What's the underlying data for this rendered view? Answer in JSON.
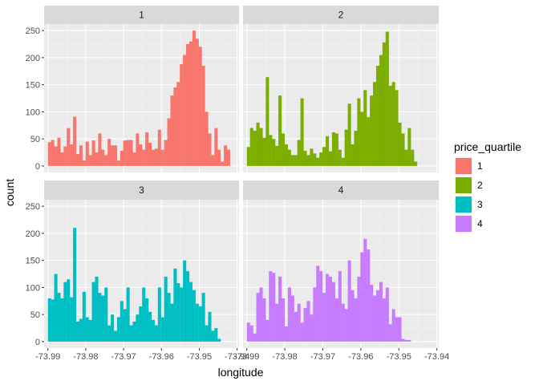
{
  "chart_data": {
    "type": "bar",
    "subtype": "faceted-histogram",
    "xlabel": "longitude",
    "ylabel": "count",
    "xlim": [
      -73.991,
      -73.9395
    ],
    "ylim": [
      -12,
      262
    ],
    "x_ticks": [
      -73.99,
      -73.98,
      -73.97,
      -73.96,
      -73.95,
      -73.94
    ],
    "x_tick_labels": [
      "-73.99",
      "-73.98",
      "-73.97",
      "-73.96",
      "-73.95",
      "-73.94"
    ],
    "y_ticks": [
      0,
      50,
      100,
      150,
      200,
      250
    ],
    "y_tick_labels": [
      "0",
      "50",
      "100",
      "150",
      "200",
      "250"
    ],
    "bin_start": -73.99,
    "bin_width": 0.00083,
    "grid": true,
    "legend": {
      "title": "price_quartile",
      "position": "right",
      "entries": [
        {
          "label": "1",
          "color": "#F8766D"
        },
        {
          "label": "2",
          "color": "#7CAE00"
        },
        {
          "label": "3",
          "color": "#00BFC4"
        },
        {
          "label": "4",
          "color": "#C77CFF"
        }
      ]
    },
    "facets": [
      {
        "label": "1",
        "color": "#F8766D",
        "values": [
          44,
          48,
          36,
          52,
          25,
          36,
          70,
          40,
          91,
          22,
          38,
          10,
          45,
          20,
          47,
          25,
          60,
          30,
          20,
          50,
          38,
          38,
          10,
          28,
          47,
          48,
          48,
          25,
          60,
          40,
          30,
          62,
          43,
          30,
          32,
          67,
          30,
          48,
          88,
          130,
          145,
          155,
          188,
          205,
          225,
          230,
          250,
          235,
          220,
          185,
          100,
          60,
          20,
          70,
          30,
          8,
          38,
          30
        ]
      },
      {
        "label": "2",
        "color": "#7CAE00",
        "values": [
          35,
          70,
          65,
          80,
          70,
          52,
          164,
          57,
          50,
          37,
          130,
          60,
          40,
          30,
          20,
          20,
          48,
          125,
          28,
          20,
          32,
          23,
          15,
          25,
          35,
          55,
          27,
          62,
          60,
          30,
          15,
          67,
          115,
          40,
          65,
          125,
          100,
          140,
          90,
          130,
          155,
          185,
          205,
          228,
          248,
          148,
          155,
          140,
          80,
          60,
          30,
          70,
          30,
          8
        ]
      },
      {
        "label": "3",
        "color": "#00BFC4",
        "values": [
          80,
          78,
          125,
          90,
          80,
          110,
          115,
          82,
          210,
          37,
          42,
          92,
          45,
          40,
          110,
          120,
          90,
          85,
          100,
          30,
          50,
          20,
          45,
          75,
          60,
          100,
          30,
          37,
          50,
          65,
          100,
          80,
          55,
          40,
          30,
          100,
          45,
          120,
          90,
          70,
          135,
          108,
          100,
          150,
          130,
          110,
          95,
          70,
          65,
          90,
          30,
          55,
          20,
          25,
          5
        ]
      },
      {
        "label": "4",
        "color": "#C77CFF",
        "values": [
          35,
          30,
          15,
          90,
          100,
          80,
          40,
          130,
          127,
          70,
          120,
          80,
          28,
          100,
          85,
          55,
          70,
          35,
          62,
          75,
          50,
          100,
          140,
          130,
          90,
          125,
          120,
          110,
          80,
          130,
          70,
          60,
          150,
          95,
          80,
          120,
          165,
          190,
          170,
          105,
          85,
          95,
          110,
          80,
          100,
          32,
          60,
          45,
          45,
          5,
          3,
          3
        ]
      }
    ]
  }
}
